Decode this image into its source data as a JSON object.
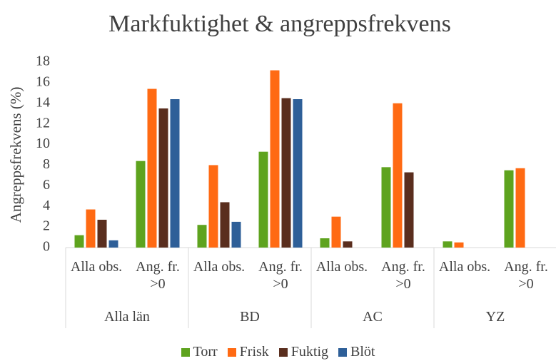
{
  "chart_data": {
    "type": "bar",
    "title": "Markfuktighet & angreppsfrekvens",
    "y_label": "Angreppsfrekvens (%)",
    "categories": [
      "Alla obs.",
      "Ang. fr. >0",
      "Alla obs.",
      "Ang. fr. >0",
      "Alla obs.",
      "Ang. fr. >0",
      "Alla obs.",
      "Ang. fr. >0"
    ],
    "groups": [
      "Alla län",
      "BD",
      "AC",
      "YZ"
    ],
    "series": [
      {
        "name": "Torr",
        "color": "#5ea31e",
        "values": [
          1.2,
          8.4,
          2.2,
          9.3,
          0.9,
          7.8,
          0.6,
          7.5
        ]
      },
      {
        "name": "Frisk",
        "color": "#ff6a13",
        "values": [
          3.7,
          15.4,
          8.0,
          17.2,
          3.0,
          14.0,
          0.5,
          7.7
        ]
      },
      {
        "name": "Fuktig",
        "color": "#5a2e1e",
        "values": [
          2.7,
          13.5,
          4.4,
          14.5,
          0.6,
          7.3,
          null,
          null
        ]
      },
      {
        "name": "Blöt",
        "color": "#2e5f98",
        "values": [
          0.7,
          14.4,
          2.5,
          14.4,
          null,
          null,
          null,
          null
        ]
      }
    ],
    "ylim": [
      0,
      18
    ],
    "yticks": [
      0,
      2,
      4,
      6,
      8,
      10,
      12,
      14,
      16,
      18
    ],
    "grid": false,
    "legend": "bottom"
  }
}
